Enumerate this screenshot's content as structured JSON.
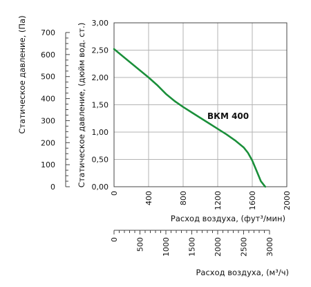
{
  "chart_data": {
    "type": "line",
    "series": [
      {
        "name": "ВКМ 400",
        "x": [
          0,
          100,
          200,
          300,
          400,
          500,
          600,
          700,
          800,
          900,
          1000,
          1100,
          1200,
          1300,
          1400,
          1500,
          1550,
          1600,
          1650,
          1700,
          1750
        ],
        "y": [
          2.52,
          2.39,
          2.26,
          2.13,
          2.0,
          1.86,
          1.7,
          1.57,
          1.46,
          1.36,
          1.26,
          1.16,
          1.06,
          0.96,
          0.85,
          0.72,
          0.62,
          0.48,
          0.29,
          0.1,
          0.0
        ]
      }
    ],
    "series_color": "#1a8f3a",
    "xlabel": "Расход воздуха, (фут³/мин)",
    "xlim": [
      0,
      2000
    ],
    "x_ticks": [
      "0",
      "400",
      "800",
      "1200",
      "1600",
      "2000"
    ],
    "ylabel_right": "Статическое давление, (дюйм вод. ст.)",
    "ylim": [
      0,
      3
    ],
    "y_ticks": [
      "0,00",
      "0,50",
      "1,00",
      "1,50",
      "2,00",
      "2,50",
      "3,00"
    ],
    "ylabel_left": "Статическое давление, (Па)",
    "y_pa_ticks": [
      "0",
      "100",
      "200",
      "300",
      "400",
      "500",
      "600",
      "700"
    ],
    "x2label": "Расход воздуха, (м³/ч)",
    "x2_ticks": [
      "0",
      "500",
      "1000",
      "1500",
      "2000",
      "2500",
      "3000"
    ],
    "grid": true
  }
}
